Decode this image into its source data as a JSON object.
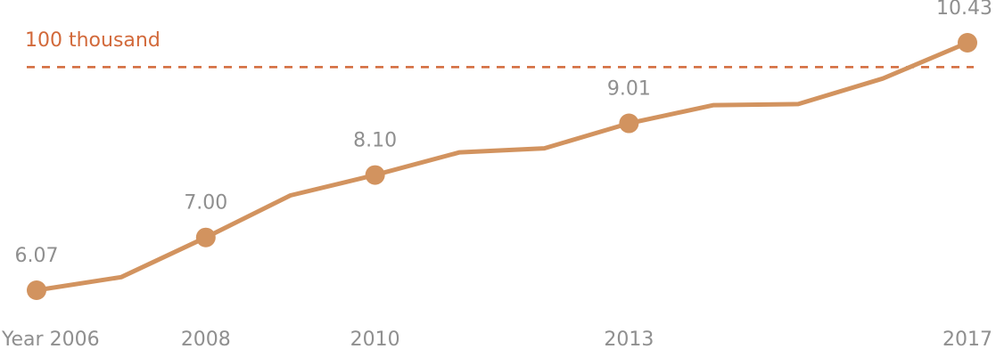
{
  "colors": {
    "line": "#D2935F",
    "reference": "#D2693A",
    "text": "#8F8F8F",
    "background": "#FFFFFF"
  },
  "chart_data": {
    "type": "line",
    "title": "",
    "xlabel": "",
    "ylabel": "",
    "x": [
      2006,
      2007,
      2008,
      2009,
      2010,
      2011,
      2012,
      2013,
      2014,
      2015,
      2016,
      2017
    ],
    "series": [
      {
        "values": [
          6.07,
          6.3,
          7.0,
          7.74,
          8.1,
          8.5,
          8.57,
          9.01,
          9.33,
          9.35,
          9.8,
          10.43
        ]
      }
    ],
    "markers_at": [
      2006,
      2008,
      2010,
      2013,
      2017
    ],
    "data_labels": [
      "6.07",
      "7.00",
      "8.10",
      "9.01",
      "10.43"
    ],
    "x_tick_labels": [
      "Year 2006",
      "2008",
      "2010",
      "2013",
      "2017"
    ],
    "reference_line": {
      "value": 10,
      "label": "100 thousand",
      "style": "dashed"
    },
    "ylim": [
      5.5,
      10.7
    ],
    "grid": false,
    "legend": "none"
  }
}
